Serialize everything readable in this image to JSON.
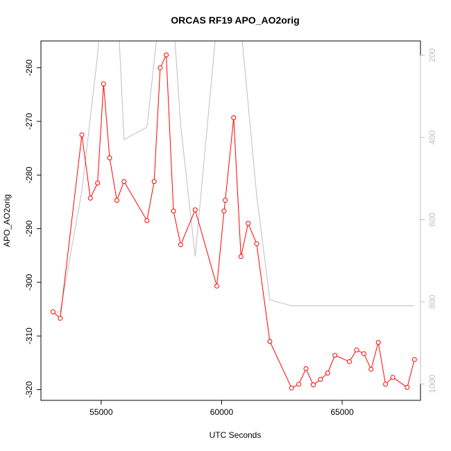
{
  "chart_data": {
    "type": "line",
    "title": "ORCAS RF19 APO_AO2orig",
    "xlabel": "UTC Seconds",
    "ylabel": "APO_AO2orig",
    "xlim": [
      52500,
      68250
    ],
    "ylim": [
      -322,
      -255
    ],
    "y2lim": [
      1040,
      165
    ],
    "x_ticks": [
      55000,
      60000,
      65000
    ],
    "y_ticks": [
      -260,
      -270,
      -280,
      -290,
      -300,
      -310,
      -320
    ],
    "y2_ticks": [
      200,
      400,
      600,
      800,
      1000
    ],
    "grid": false,
    "legend": "none",
    "colors": {
      "primary": "#ff0000",
      "secondary": "#bebebe"
    },
    "series": [
      {
        "x": [
          53000,
          53300,
          54200,
          54550,
          54850,
          55100,
          55350,
          55650,
          55950,
          56900,
          57200,
          57450,
          57700,
          58000,
          58300,
          58900,
          59800,
          60100,
          60150,
          60500,
          60800,
          61100,
          61450,
          62000,
          62900,
          63200,
          63500,
          63800,
          64100,
          64400,
          64700,
          65300,
          65600,
          65900,
          66200,
          66500,
          66800,
          67100,
          67700,
          68000
        ],
        "values": [
          -305.5,
          -306.7,
          -272.5,
          -284.3,
          -281.5,
          -263,
          -276.8,
          -284.7,
          -281.2,
          -288.5,
          -281.2,
          -260,
          -257.6,
          -286.7,
          -293,
          -286.5,
          -300.7,
          -286.7,
          -284.7,
          -269.3,
          -295.2,
          -289,
          -292.8,
          -311,
          -319.7,
          -319,
          -316.1,
          -319.1,
          -318.1,
          -316.9,
          -313.6,
          -314.8,
          -312.6,
          -313.3,
          -316.2,
          -311.2,
          -319,
          -317.7,
          -319.6,
          -314.4
        ]
      },
      {
        "axis": "right",
        "x": [
          53000,
          53300,
          54200,
          54850,
          55100,
          55650,
          55950,
          56900,
          57450,
          58000,
          58300,
          58900,
          59800,
          60800,
          61450,
          62000,
          62900,
          68000
        ],
        "values": [
          825,
          825,
          530,
          200,
          20,
          40,
          405,
          375,
          80,
          110,
          370,
          690,
          120,
          130,
          540,
          795,
          810,
          810
        ]
      }
    ]
  }
}
